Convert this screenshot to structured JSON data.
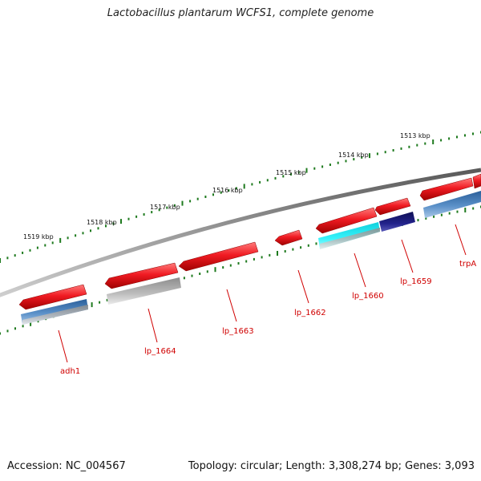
{
  "title": "Lactobacillus plantarum WCFS1, complete genome",
  "footer": {
    "accession": "Accession: NC_004567",
    "summary": "Topology: circular; Length: 3,308,274 bp; Genes: 3,093"
  },
  "scale_labels": [
    "1513 kbp",
    "1514 kbp",
    "1515 kbp",
    "1516 kbp",
    "1517 kbp",
    "1518 kbp",
    "1519 kbp"
  ],
  "gene_labels": [
    "trpA",
    "lp_1659",
    "lp_1660",
    "lp_1662",
    "lp_1663",
    "lp_1664",
    "adh1"
  ],
  "colors": {
    "gene_red": "#e8121a",
    "gene_red_light": "#ff5a5a",
    "backbone": "#7a7a7a",
    "ticks": "#1e7a1e",
    "label_red": "#d00000",
    "blue": "#3f78b4",
    "cyan": "#12e2ee",
    "navy": "#1a1a7a",
    "grey": "#b4b4b4"
  }
}
